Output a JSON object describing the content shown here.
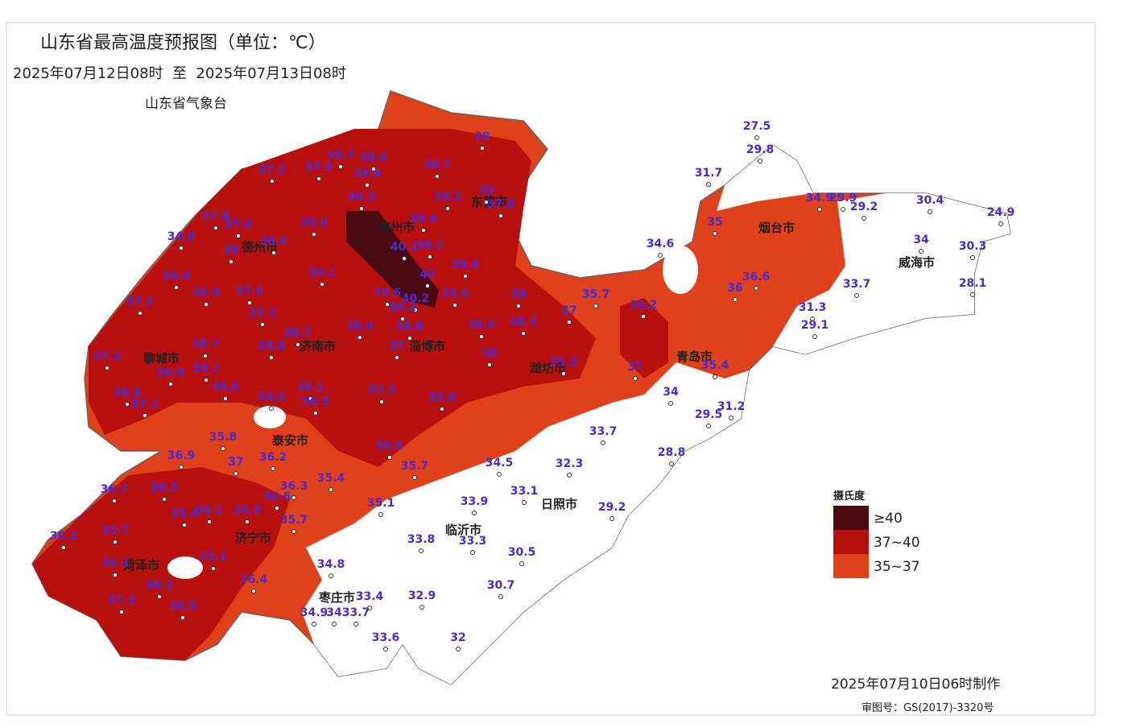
{
  "header": {
    "title": "山东省最高温度预报图（单位：℃）",
    "period": "2025年07月12日08时  至  2025年07月13日08时",
    "issuer": "山东省气象台"
  },
  "cities": [
    "滨州市",
    "东营市",
    "德州市",
    "聊城市",
    "济南市",
    "淄博市",
    "潍坊市",
    "青岛市",
    "烟台市",
    "威海市",
    "泰安市",
    "济宁市",
    "菏泽市",
    "枣庄市",
    "临沂市",
    "日照市"
  ],
  "stations": [
    38.7,
    38.6,
    37.2,
    37.9,
    38.4,
    38.7,
    38,
    40.3,
    39.2,
    39,
    37.8,
    37.8,
    37.8,
    39.8,
    39.6,
    34.9,
    38.8,
    38,
    40.1,
    39.2,
    39.4,
    34.4,
    39.1,
    40,
    37.3,
    36.9,
    37.6,
    39.6,
    40.2,
    39.5,
    39,
    35.7,
    37.3,
    39.2,
    37,
    36.2,
    38.7,
    38.4,
    38.8,
    38.6,
    38.3,
    38.7,
    38.8,
    37.2,
    37,
    38,
    35.5,
    36.9,
    38.1,
    37,
    35.4,
    35.6,
    36.1,
    37.5,
    36.8,
    34.2,
    36.5,
    35.6,
    34,
    37.1,
    31.2,
    29.5,
    33.7,
    35.8,
    36.6,
    28.8,
    36.9,
    37,
    36.2,
    35.7,
    34.5,
    32.3,
    35.4,
    36.7,
    36.5,
    36.3,
    33.1,
    36.6,
    35.4,
    36.1,
    36.8,
    35.1,
    33.9,
    29.2,
    35.7,
    36.3,
    35.7,
    33.8,
    33.3,
    35.1,
    36.3,
    30.5,
    34.8,
    36.5,
    36.4,
    30.7,
    33.4,
    37.3,
    32.9,
    36.5,
    34.9,
    34,
    33.7,
    33.6,
    32,
    27.5,
    29.8,
    31.7,
    34.9,
    29.9,
    29.2,
    30.4,
    24.9,
    35,
    34.6,
    34,
    30.3,
    36.6,
    36,
    33.7,
    28.1,
    31.3,
    29.1
  ],
  "legend": {
    "title": "摄氏度",
    "items": [
      {
        "label": "≥40",
        "color": "#4a0a12"
      },
      {
        "label": "37~40",
        "color": "#b80f0f"
      },
      {
        "label": "35~37",
        "color": "#e0401a"
      }
    ]
  },
  "footer": {
    "made": "2025年07月10日06时制作",
    "review": "审图号：GS(2017)-3320号"
  }
}
